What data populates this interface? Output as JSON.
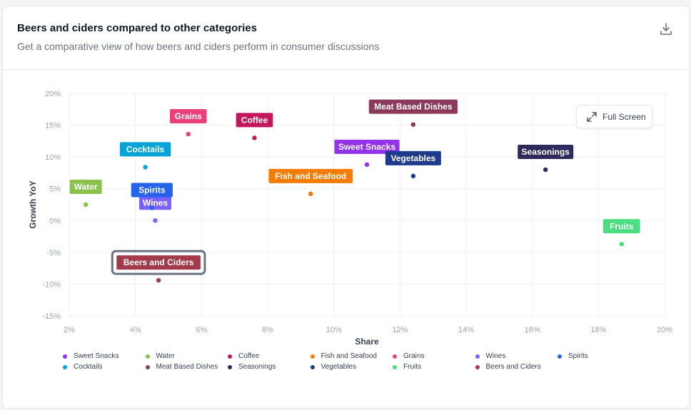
{
  "header": {
    "title": "Beers and ciders compared to other categories",
    "subtitle": "Get a comparative view of how beers and ciders perform in consumer discussions",
    "download_icon": "download-icon"
  },
  "fullscreen": {
    "label": "Full Screen",
    "icon": "expand-icon"
  },
  "chart_data": {
    "type": "scatter",
    "xlabel": "Share",
    "ylabel": "Growth YoY",
    "xlim": [
      2,
      20
    ],
    "ylim": [
      -15,
      20
    ],
    "x_ticks": [
      "2%",
      "4%",
      "6%",
      "8%",
      "10%",
      "12%",
      "14%",
      "16%",
      "18%",
      "20%"
    ],
    "y_ticks": [
      "20%",
      "15%",
      "10%",
      "5%",
      "0%",
      "-5%",
      "-10%",
      "-15%"
    ],
    "grid": true,
    "legend_position": "bottom",
    "highlighted": "Beers and Ciders",
    "series": [
      {
        "name": "Sweet Snacks",
        "x": 11.0,
        "y": 8.8,
        "color": "#9333ea"
      },
      {
        "name": "Water",
        "x": 2.5,
        "y": 2.5,
        "color": "#8bc34a"
      },
      {
        "name": "Coffee",
        "x": 7.6,
        "y": 13.0,
        "color": "#c2185b"
      },
      {
        "name": "Fish and Seafood",
        "x": 9.3,
        "y": 4.2,
        "color": "#f57c00"
      },
      {
        "name": "Grains",
        "x": 5.6,
        "y": 13.6,
        "color": "#ec407a"
      },
      {
        "name": "Wines",
        "x": 4.6,
        "y": 0.0,
        "color": "#7b61ff"
      },
      {
        "name": "Spirits",
        "x": 4.5,
        "y": 2.0,
        "color": "#2563eb"
      },
      {
        "name": "Cocktails",
        "x": 4.3,
        "y": 8.4,
        "color": "#06a4d6"
      },
      {
        "name": "Meat Based Dishes",
        "x": 12.4,
        "y": 15.1,
        "color": "#8b3a5c"
      },
      {
        "name": "Seasonings",
        "x": 16.4,
        "y": 8.0,
        "color": "#2e2a5e"
      },
      {
        "name": "Vegetables",
        "x": 12.4,
        "y": 7.0,
        "color": "#1e3a8a"
      },
      {
        "name": "Fruits",
        "x": 18.7,
        "y": -3.7,
        "color": "#4ade80"
      },
      {
        "name": "Beers and Ciders",
        "x": 4.7,
        "y": -9.4,
        "color": "#a33a4c"
      }
    ]
  }
}
